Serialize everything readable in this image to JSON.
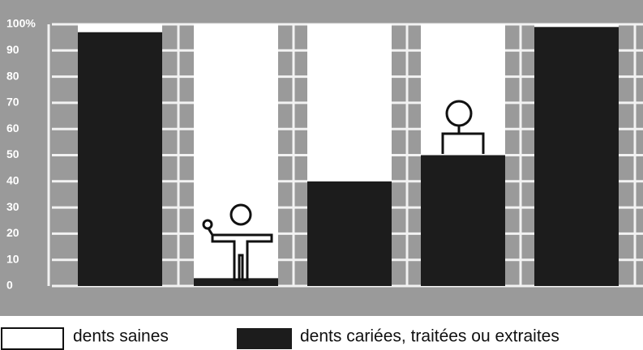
{
  "chart_data": {
    "type": "bar",
    "stacked": true,
    "categories": [
      null,
      null,
      null,
      null,
      null
    ],
    "series": [
      {
        "name": "dents cariées, traitées ou extraites",
        "color": "#1c1c1c",
        "values": [
          97,
          3,
          40,
          50,
          99
        ]
      },
      {
        "name": "dents saines",
        "color": "#ffffff",
        "values": [
          3,
          97,
          60,
          50,
          1
        ]
      }
    ],
    "ylim": [
      0,
      100
    ],
    "yticks": [
      0,
      10,
      20,
      30,
      40,
      50,
      60,
      70,
      80,
      90,
      {
        "value": 100,
        "label": "100%"
      }
    ],
    "grid": true
  }
}
